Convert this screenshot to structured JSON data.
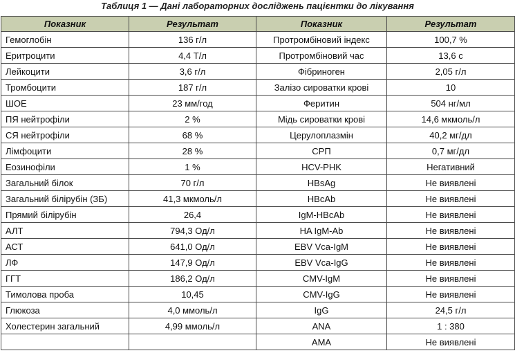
{
  "caption": "Таблиця 1 — Дані лабораторних досліджень пацієнтки до лікування",
  "headers": {
    "indicator_left": "Показник",
    "result_left": "Результат",
    "indicator_right": "Показник",
    "result_right": "Результат"
  },
  "rows": [
    {
      "l_name": "Гемоглобін",
      "l_val": "136 г/л",
      "r_name": "Протромбіновий індекс",
      "r_val": "100,7 %"
    },
    {
      "l_name": "Еритроцити",
      "l_val": "4,4 Т/л",
      "r_name": "Протромбіновий час",
      "r_val": "13,6 с"
    },
    {
      "l_name": "Лейкоцити",
      "l_val": "3,6 г/л",
      "r_name": "Фібриноген",
      "r_val": "2,05 г/л"
    },
    {
      "l_name": "Тромбоцити",
      "l_val": "187 г/л",
      "r_name": "Залізо сироватки крові",
      "r_val": "10"
    },
    {
      "l_name": "ШОЕ",
      "l_val": "23 мм/год",
      "r_name": "Феритин",
      "r_val": "504 нг/мл"
    },
    {
      "l_name": "ПЯ нейтрофіли",
      "l_val": "2 %",
      "r_name": "Мідь сироватки крові",
      "r_val": "14,6 мкмоль/л"
    },
    {
      "l_name": "СЯ нейтрофіли",
      "l_val": "68 %",
      "r_name": "Церулоплазмін",
      "r_val": "40,2 мг/дл"
    },
    {
      "l_name": "Лімфоцити",
      "l_val": "28 %",
      "r_name": "СРП",
      "r_val": "0,7 мг/дл"
    },
    {
      "l_name": "Еозинофіли",
      "l_val": "1 %",
      "r_name": "HCV-PHK",
      "r_val": "Негативний"
    },
    {
      "l_name": "Загальний білок",
      "l_val": "70 г/л",
      "r_name": "HBsAg",
      "r_val": "Не виявлені"
    },
    {
      "l_name": "Загальний білірубін (ЗБ)",
      "l_val": "41,3 мкмоль/л",
      "r_name": "HBcAb",
      "r_val": "Не виявлені"
    },
    {
      "l_name": "Прямий білірубін",
      "l_val": "26,4",
      "r_name": "IgM-HBcAb",
      "r_val": "Не виявлені"
    },
    {
      "l_name": "АЛТ",
      "l_val": "794,3 Од/л",
      "r_name": "HA IgM-Ab",
      "r_val": "Не виявлені"
    },
    {
      "l_name": "АСТ",
      "l_val": "641,0 Од/л",
      "r_name": "EBV Vca-IgM",
      "r_val": "Не виявлені"
    },
    {
      "l_name": "ЛФ",
      "l_val": "147,9 Од/л",
      "r_name": "EBV Vca-IgG",
      "r_val": "Не виявлені"
    },
    {
      "l_name": "ГГТ",
      "l_val": "186,2 Од/л",
      "r_name": "CMV-IgM",
      "r_val": "Не виявлені"
    },
    {
      "l_name": "Тимолова проба",
      "l_val": "10,45",
      "r_name": "CMV-IgG",
      "r_val": "Не виявлені"
    },
    {
      "l_name": "Глюкоза",
      "l_val": "4,0 ммоль/л",
      "r_name": "IgG",
      "r_val": "24,5 г/л"
    },
    {
      "l_name": "Холестерин загальний",
      "l_val": "4,99 ммоль/л",
      "r_name": "ANA",
      "r_val": "1 : 380"
    },
    {
      "l_name": "",
      "l_val": "",
      "r_name": "AMA",
      "r_val": "Не виявлені"
    }
  ]
}
